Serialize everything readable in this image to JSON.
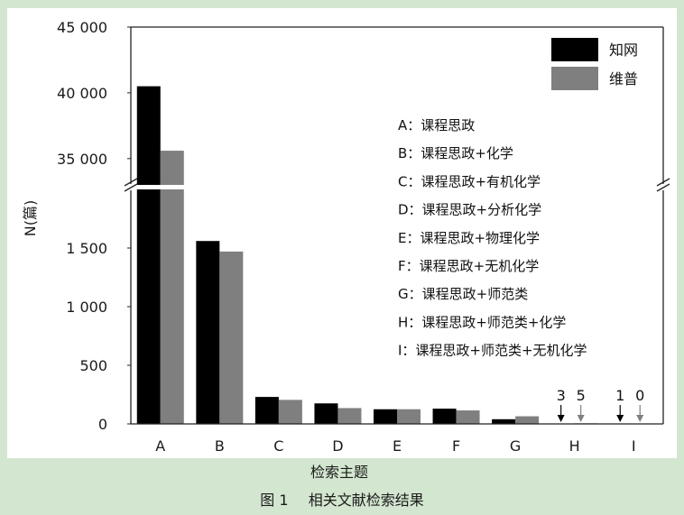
{
  "chart_data": {
    "type": "bar",
    "categories": [
      "A",
      "B",
      "C",
      "D",
      "E",
      "F",
      "G",
      "H",
      "I"
    ],
    "series": [
      {
        "name": "知网",
        "color": "#000000",
        "values": [
          40500,
          1560,
          230,
          175,
          125,
          130,
          40,
          3,
          1
        ]
      },
      {
        "name": "维普",
        "color": "#7f7f7f",
        "values": [
          35600,
          1470,
          205,
          135,
          125,
          115,
          65,
          5,
          0
        ]
      }
    ],
    "xlabel": "检索主题",
    "ylabel": "N(篇)",
    "y_scale": "broken",
    "ylim_lower": [
      0,
      2000
    ],
    "ylim_upper": [
      33000,
      45000
    ],
    "yticks_lower": [
      "0",
      "500",
      "1 000",
      "1 500"
    ],
    "yticks_upper": [
      "35 000",
      "40 000",
      "45 000"
    ],
    "yticks_lower_values": [
      0,
      500,
      1000,
      1500
    ],
    "yticks_upper_values": [
      35000,
      40000,
      45000
    ],
    "legend_position": "top-right",
    "small_value_annotations": [
      {
        "category": "H",
        "texts": [
          "3",
          "5"
        ]
      },
      {
        "category": "I",
        "texts": [
          "1",
          "0"
        ]
      }
    ],
    "category_definitions": [
      "A：课程思政",
      "B：课程思政+化学",
      "C：课程思政+有机化学",
      "D：课程思政+分析化学",
      "E：课程思政+物理化学",
      "F：课程思政+无机化学",
      "G：课程思政+师范类",
      "H：课程思政+师范类+化学",
      "I：课程思政+师范类+无机化学"
    ]
  },
  "caption": {
    "figure_label": "图 1",
    "title": "相关文献检索结果"
  }
}
